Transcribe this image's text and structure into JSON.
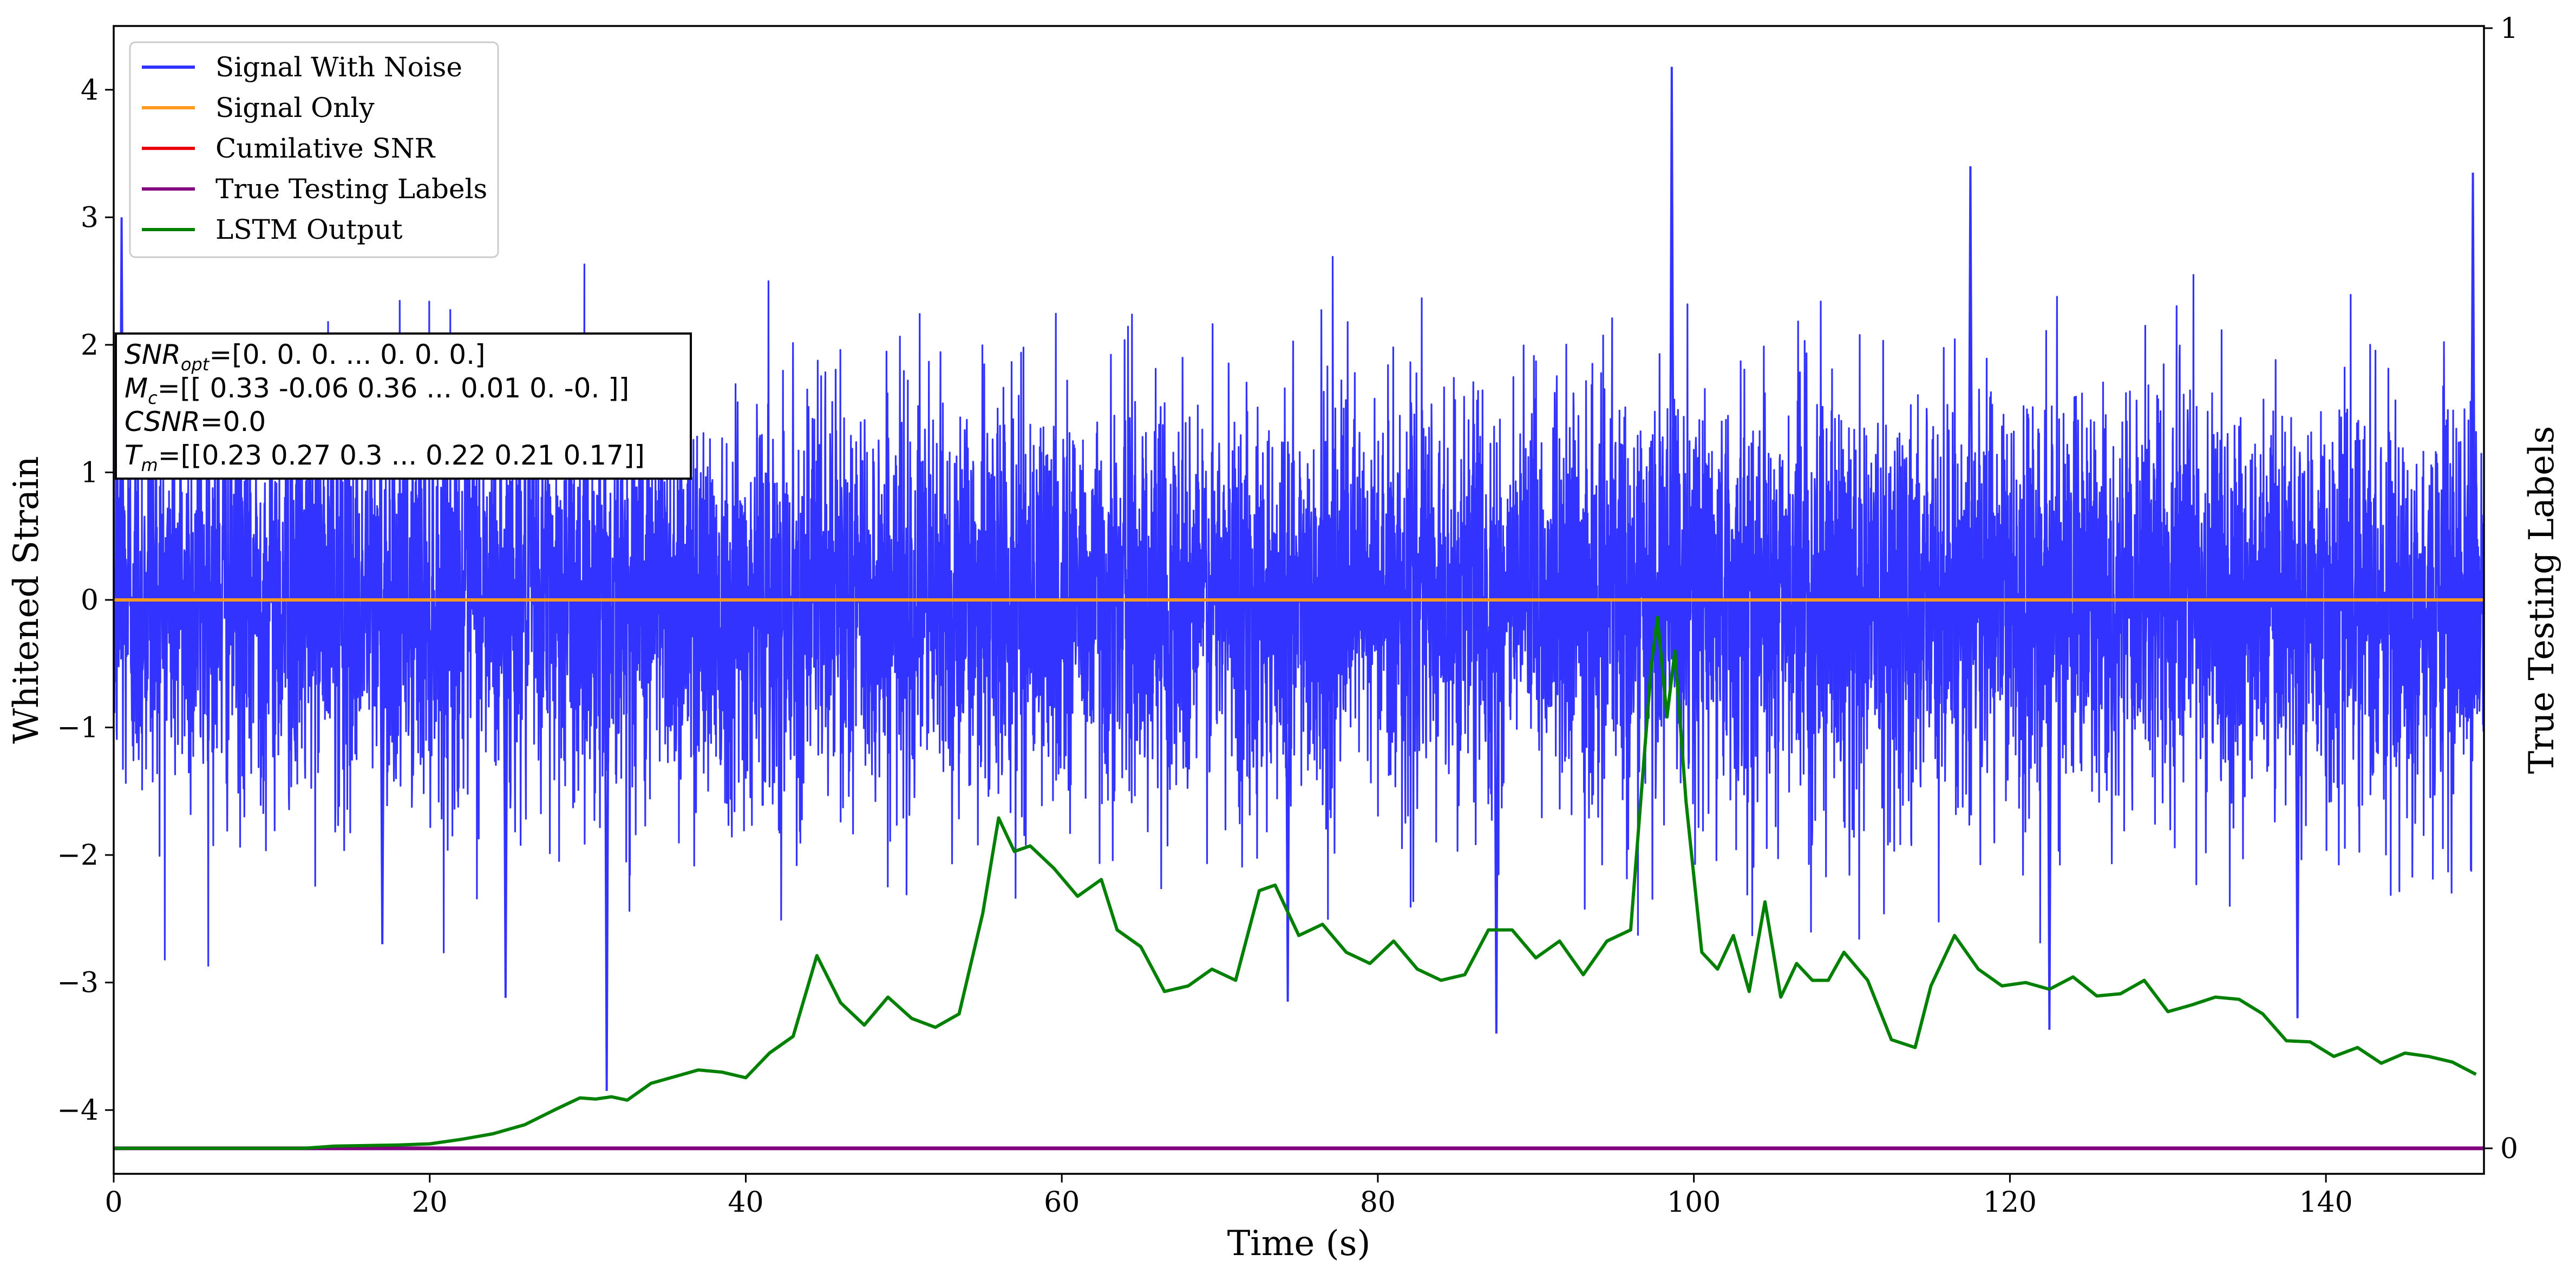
{
  "chart_data": {
    "type": "line",
    "xlabel": "Time (s)",
    "ylabel": "Whitened Strain",
    "y2label": "True Testing Labels",
    "xlim": [
      0,
      150
    ],
    "ylim": [
      -4.5,
      4.5
    ],
    "y2lim": [
      0,
      1
    ],
    "xticks": [
      0,
      20,
      40,
      60,
      80,
      100,
      120,
      140
    ],
    "yticks": [
      4,
      3,
      2,
      1,
      0,
      -1,
      -2,
      -3,
      -4
    ],
    "y2ticks": [
      1,
      0
    ],
    "grid": false,
    "legend_position": "top-left",
    "legend": [
      "Signal With Noise",
      "Signal Only",
      "Cumilative SNR",
      "True Testing Labels",
      "LSTM Output"
    ],
    "series": [
      {
        "name": "Signal With Noise",
        "color": "#3333ff",
        "description": "dense gaussian-like noise filling the band roughly -2 to +2, with sparse spikes to about +4.2 and -3.8",
        "band": [
          -2.0,
          2.0
        ],
        "notable_spikes": [
          [
            0.5,
            3.0
          ],
          [
            31.2,
            -3.85
          ],
          [
            98.6,
            4.18
          ],
          [
            149.3,
            3.35
          ],
          [
            17.0,
            -2.7
          ],
          [
            24.8,
            -3.12
          ],
          [
            74.3,
            -3.15
          ],
          [
            87.5,
            -3.4
          ],
          [
            117.5,
            3.4
          ],
          [
            122.5,
            -3.37
          ],
          [
            138.2,
            -3.28
          ]
        ]
      },
      {
        "name": "Signal Only",
        "color": "#ff9a1f",
        "points": [
          [
            0,
            0
          ],
          [
            150,
            0
          ]
        ]
      },
      {
        "name": "Cumilative SNR",
        "color": "#e8000b",
        "points": []
      },
      {
        "name": "True Testing Labels",
        "color": "#800080",
        "axis": "right",
        "points": [
          [
            0,
            0
          ],
          [
            150,
            0
          ]
        ]
      },
      {
        "name": "LSTM Output",
        "color": "#008000",
        "axis": "right",
        "points": [
          [
            0,
            0.0
          ],
          [
            12,
            0.0
          ],
          [
            14,
            0.002
          ],
          [
            18,
            0.003
          ],
          [
            20,
            0.004
          ],
          [
            22,
            0.008
          ],
          [
            24,
            0.013
          ],
          [
            26,
            0.021
          ],
          [
            28,
            0.035
          ],
          [
            29.5,
            0.045
          ],
          [
            30.5,
            0.044
          ],
          [
            31.5,
            0.046
          ],
          [
            32.5,
            0.043
          ],
          [
            34,
            0.058
          ],
          [
            35.5,
            0.064
          ],
          [
            37,
            0.07
          ],
          [
            38.5,
            0.068
          ],
          [
            40,
            0.063
          ],
          [
            41.5,
            0.085
          ],
          [
            43,
            0.1
          ],
          [
            44.5,
            0.172
          ],
          [
            46,
            0.13
          ],
          [
            47.5,
            0.11
          ],
          [
            49,
            0.135
          ],
          [
            50.5,
            0.116
          ],
          [
            52,
            0.108
          ],
          [
            53.5,
            0.12
          ],
          [
            55,
            0.21
          ],
          [
            56,
            0.295
          ],
          [
            57,
            0.265
          ],
          [
            58,
            0.27
          ],
          [
            59.5,
            0.25
          ],
          [
            61,
            0.225
          ],
          [
            62.5,
            0.24
          ],
          [
            63.5,
            0.195
          ],
          [
            65,
            0.18
          ],
          [
            66.5,
            0.14
          ],
          [
            68,
            0.145
          ],
          [
            69.5,
            0.16
          ],
          [
            71,
            0.15
          ],
          [
            72.5,
            0.23
          ],
          [
            73.5,
            0.235
          ],
          [
            75,
            0.19
          ],
          [
            76.5,
            0.2
          ],
          [
            78,
            0.175
          ],
          [
            79.5,
            0.165
          ],
          [
            81,
            0.185
          ],
          [
            82.5,
            0.16
          ],
          [
            84,
            0.15
          ],
          [
            85.5,
            0.155
          ],
          [
            87,
            0.195
          ],
          [
            88.5,
            0.195
          ],
          [
            90,
            0.17
          ],
          [
            91.5,
            0.185
          ],
          [
            93,
            0.155
          ],
          [
            94.5,
            0.185
          ],
          [
            96,
            0.195
          ],
          [
            97.3,
            0.43
          ],
          [
            97.7,
            0.474
          ],
          [
            98.3,
            0.385
          ],
          [
            98.8,
            0.444
          ],
          [
            99.5,
            0.31
          ],
          [
            100.5,
            0.175
          ],
          [
            101.5,
            0.16
          ],
          [
            102.5,
            0.19
          ],
          [
            103.5,
            0.14
          ],
          [
            104.5,
            0.22
          ],
          [
            105.5,
            0.135
          ],
          [
            106.5,
            0.165
          ],
          [
            107.5,
            0.15
          ],
          [
            108.5,
            0.15
          ],
          [
            109.5,
            0.175
          ],
          [
            111,
            0.15
          ],
          [
            112.5,
            0.097
          ],
          [
            114,
            0.09
          ],
          [
            115,
            0.145
          ],
          [
            116.5,
            0.19
          ],
          [
            118,
            0.16
          ],
          [
            119.5,
            0.145
          ],
          [
            121,
            0.148
          ],
          [
            122.5,
            0.142
          ],
          [
            124,
            0.153
          ],
          [
            125.5,
            0.136
          ],
          [
            127,
            0.138
          ],
          [
            128.5,
            0.15
          ],
          [
            130,
            0.122
          ],
          [
            131.5,
            0.128
          ],
          [
            133,
            0.135
          ],
          [
            134.5,
            0.133
          ],
          [
            136,
            0.12
          ],
          [
            137.5,
            0.096
          ],
          [
            139,
            0.095
          ],
          [
            140.5,
            0.082
          ],
          [
            142,
            0.09
          ],
          [
            143.5,
            0.076
          ],
          [
            145,
            0.085
          ],
          [
            146.5,
            0.082
          ],
          [
            148,
            0.077
          ],
          [
            149.5,
            0.066
          ]
        ]
      }
    ]
  },
  "annotation": {
    "lines": [
      {
        "label": "SNR",
        "sub": "opt",
        "value": "=[0. 0. 0. ... 0. 0. 0.]"
      },
      {
        "label": "M",
        "sub": "c",
        "value": "=[[ 0.33 -0.06  0.36 ...  0.01  0.   -0.  ]]"
      },
      {
        "label": "CSNR",
        "sub": "",
        "value": "=0.0"
      },
      {
        "label": "T",
        "sub": "m",
        "value": "=[[0.23 0.27 0.3  ... 0.22 0.21 0.17]]"
      }
    ]
  }
}
